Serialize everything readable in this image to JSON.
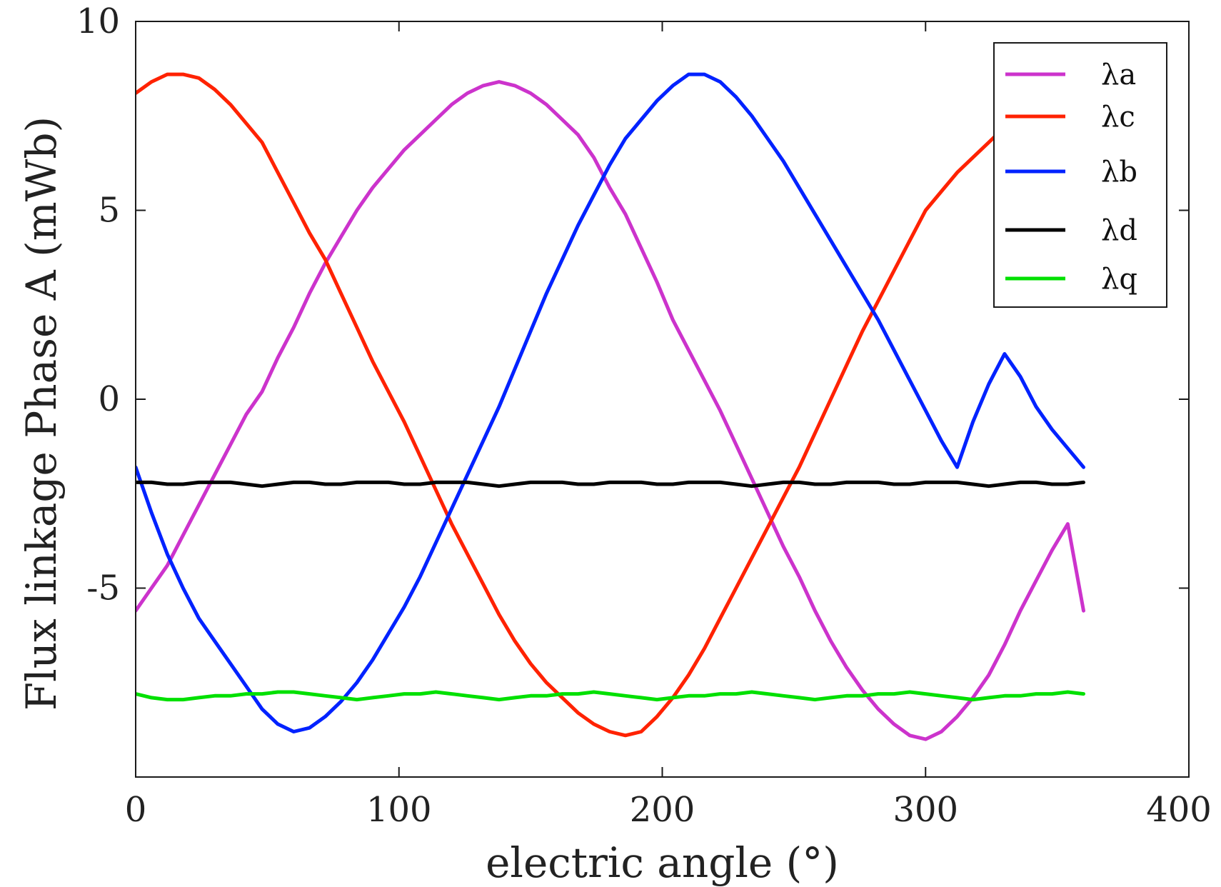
{
  "chart_data": {
    "type": "line",
    "xlabel": "electric angle (°)",
    "ylabel": "Flux linkage  Phase A (mWb)",
    "xlim": [
      0,
      400
    ],
    "ylim": [
      -10,
      10
    ],
    "xticks": [
      0,
      100,
      200,
      300,
      400
    ],
    "yticks": [
      -5,
      0,
      5,
      10
    ],
    "xtick_labels": [
      "0",
      "100",
      "200",
      "300",
      "400"
    ],
    "ytick_labels": [
      "-5",
      "0",
      "5",
      "10"
    ],
    "grid": false,
    "legend_position": "top-right",
    "series": [
      {
        "name": "λa",
        "color": "#CC33CC",
        "x": [
          0,
          6,
          12,
          18,
          24,
          30,
          36,
          42,
          48,
          54,
          60,
          66,
          72,
          78,
          84,
          90,
          96,
          102,
          108,
          114,
          120,
          126,
          132,
          138,
          144,
          150,
          156,
          162,
          168,
          174,
          180,
          186,
          192,
          198,
          204,
          210,
          216,
          222,
          228,
          234,
          240,
          246,
          252,
          258,
          264,
          270,
          276,
          282,
          288,
          294,
          300,
          306,
          312,
          318,
          324,
          330,
          336,
          342,
          348,
          354,
          360
        ],
        "y": [
          -5.6,
          -5.0,
          -4.4,
          -3.6,
          -2.8,
          -2.0,
          -1.2,
          -0.4,
          0.2,
          1.1,
          1.9,
          2.8,
          3.6,
          4.3,
          5.0,
          5.6,
          6.1,
          6.6,
          7.0,
          7.4,
          7.8,
          8.1,
          8.3,
          8.4,
          8.3,
          8.1,
          7.8,
          7.4,
          7.0,
          6.4,
          5.6,
          4.9,
          4.0,
          3.1,
          2.1,
          1.3,
          0.5,
          -0.3,
          -1.2,
          -2.1,
          -3.0,
          -3.9,
          -4.7,
          -5.6,
          -6.4,
          -7.1,
          -7.7,
          -8.2,
          -8.6,
          -8.9,
          -9.0,
          -8.8,
          -8.4,
          -7.9,
          -7.3,
          -6.5,
          -5.6,
          -4.8,
          -4.0,
          -3.3,
          -5.6
        ]
      },
      {
        "name": "λc",
        "color": "#FF2200",
        "x": [
          0,
          6,
          12,
          18,
          24,
          30,
          36,
          42,
          48,
          54,
          60,
          66,
          72,
          78,
          84,
          90,
          96,
          102,
          108,
          114,
          120,
          126,
          132,
          138,
          144,
          150,
          156,
          162,
          168,
          174,
          180,
          186,
          192,
          198,
          204,
          210,
          216,
          222,
          228,
          234,
          240,
          246,
          252,
          258,
          264,
          270,
          276,
          282,
          288,
          294,
          300,
          306,
          312,
          318,
          324,
          330,
          336,
          342,
          348,
          354,
          360
        ],
        "y": [
          8.1,
          8.4,
          8.6,
          8.6,
          8.5,
          8.2,
          7.8,
          7.3,
          6.8,
          6.0,
          5.2,
          4.4,
          3.7,
          2.8,
          1.9,
          1.0,
          0.2,
          -0.6,
          -1.5,
          -2.4,
          -3.3,
          -4.1,
          -4.9,
          -5.7,
          -6.4,
          -7.0,
          -7.5,
          -7.9,
          -8.3,
          -8.6,
          -8.8,
          -8.9,
          -8.8,
          -8.4,
          -7.9,
          -7.3,
          -6.6,
          -5.8,
          -5.0,
          -4.2,
          -3.4,
          -2.6,
          -1.8,
          -0.9,
          0.0,
          0.9,
          1.8,
          2.6,
          3.4,
          4.2,
          5.0,
          5.5,
          6.0,
          6.4,
          6.8,
          7.2,
          7.6,
          7.9,
          8.1,
          8.3,
          8.1
        ]
      },
      {
        "name": "λb",
        "color": "#0022FF",
        "x": [
          0,
          6,
          12,
          18,
          24,
          30,
          36,
          42,
          48,
          54,
          60,
          66,
          72,
          78,
          84,
          90,
          96,
          102,
          108,
          114,
          120,
          126,
          132,
          138,
          144,
          150,
          156,
          162,
          168,
          174,
          180,
          186,
          192,
          198,
          204,
          210,
          216,
          222,
          228,
          234,
          240,
          246,
          252,
          258,
          264,
          270,
          276,
          282,
          288,
          294,
          300,
          306,
          312,
          318,
          324,
          330,
          336,
          342,
          348,
          354,
          360
        ],
        "y": [
          -1.8,
          -3.0,
          -4.1,
          -5.0,
          -5.8,
          -6.4,
          -7.0,
          -7.6,
          -8.2,
          -8.6,
          -8.8,
          -8.7,
          -8.4,
          -8.0,
          -7.5,
          -6.9,
          -6.2,
          -5.5,
          -4.7,
          -3.8,
          -2.9,
          -2.0,
          -1.1,
          -0.2,
          0.8,
          1.8,
          2.8,
          3.7,
          4.6,
          5.4,
          6.2,
          6.9,
          7.4,
          7.9,
          8.3,
          8.6,
          8.6,
          8.4,
          8.0,
          7.5,
          6.9,
          6.3,
          5.6,
          4.9,
          4.2,
          3.5,
          2.8,
          2.1,
          1.3,
          0.5,
          -0.3,
          -1.1,
          -1.8,
          -0.6,
          0.4,
          1.2,
          0.6,
          -0.2,
          -0.8,
          -1.3,
          -1.8
        ]
      },
      {
        "name": "λd",
        "color": "#000000",
        "x": [
          0,
          6,
          12,
          18,
          24,
          30,
          36,
          42,
          48,
          54,
          60,
          66,
          72,
          78,
          84,
          90,
          96,
          102,
          108,
          114,
          120,
          126,
          132,
          138,
          144,
          150,
          156,
          162,
          168,
          174,
          180,
          186,
          192,
          198,
          204,
          210,
          216,
          222,
          228,
          234,
          240,
          246,
          252,
          258,
          264,
          270,
          276,
          282,
          288,
          294,
          300,
          306,
          312,
          318,
          324,
          330,
          336,
          342,
          348,
          354,
          360
        ],
        "y": [
          -2.2,
          -2.2,
          -2.25,
          -2.25,
          -2.2,
          -2.2,
          -2.2,
          -2.25,
          -2.3,
          -2.25,
          -2.2,
          -2.2,
          -2.25,
          -2.25,
          -2.2,
          -2.2,
          -2.2,
          -2.25,
          -2.25,
          -2.2,
          -2.2,
          -2.2,
          -2.25,
          -2.3,
          -2.25,
          -2.2,
          -2.2,
          -2.2,
          -2.25,
          -2.25,
          -2.2,
          -2.2,
          -2.2,
          -2.25,
          -2.25,
          -2.2,
          -2.2,
          -2.2,
          -2.25,
          -2.3,
          -2.25,
          -2.2,
          -2.2,
          -2.25,
          -2.25,
          -2.2,
          -2.2,
          -2.2,
          -2.25,
          -2.25,
          -2.2,
          -2.2,
          -2.2,
          -2.25,
          -2.3,
          -2.25,
          -2.2,
          -2.2,
          -2.25,
          -2.25,
          -2.2
        ]
      },
      {
        "name": "λq",
        "color": "#00E000",
        "x": [
          0,
          6,
          12,
          18,
          24,
          30,
          36,
          42,
          48,
          54,
          60,
          66,
          72,
          78,
          84,
          90,
          96,
          102,
          108,
          114,
          120,
          126,
          132,
          138,
          144,
          150,
          156,
          162,
          168,
          174,
          180,
          186,
          192,
          198,
          204,
          210,
          216,
          222,
          228,
          234,
          240,
          246,
          252,
          258,
          264,
          270,
          276,
          282,
          288,
          294,
          300,
          306,
          312,
          318,
          324,
          330,
          336,
          342,
          348,
          354,
          360
        ],
        "y": [
          -7.8,
          -7.9,
          -7.95,
          -7.95,
          -7.9,
          -7.85,
          -7.85,
          -7.8,
          -7.8,
          -7.75,
          -7.75,
          -7.8,
          -7.85,
          -7.9,
          -7.95,
          -7.9,
          -7.85,
          -7.8,
          -7.8,
          -7.75,
          -7.8,
          -7.85,
          -7.9,
          -7.95,
          -7.9,
          -7.85,
          -7.85,
          -7.8,
          -7.8,
          -7.75,
          -7.8,
          -7.85,
          -7.9,
          -7.95,
          -7.9,
          -7.85,
          -7.85,
          -7.8,
          -7.8,
          -7.75,
          -7.8,
          -7.85,
          -7.9,
          -7.95,
          -7.9,
          -7.85,
          -7.85,
          -7.8,
          -7.8,
          -7.75,
          -7.8,
          -7.85,
          -7.9,
          -7.95,
          -7.9,
          -7.85,
          -7.85,
          -7.8,
          -7.8,
          -7.75,
          -7.8
        ]
      }
    ]
  }
}
